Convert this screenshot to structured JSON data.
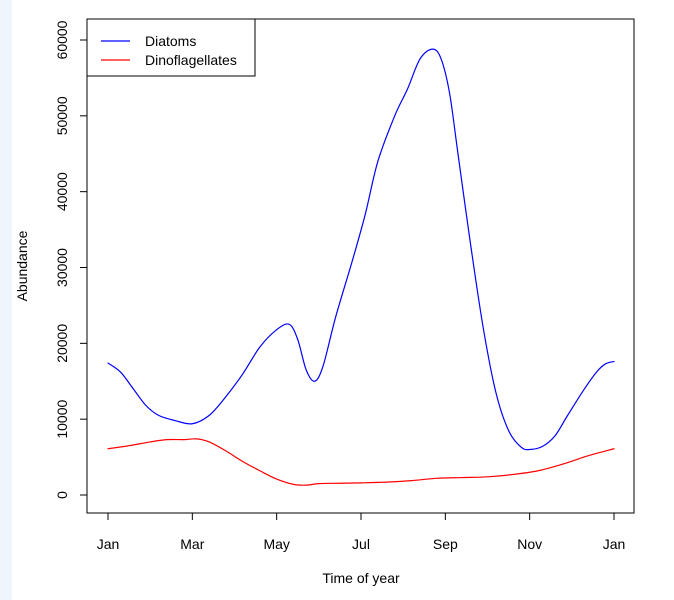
{
  "chart_data": {
    "type": "line",
    "title": "",
    "xlabel": "Time of year",
    "ylabel": "Abundance",
    "xlim": [
      0,
      12
    ],
    "ylim": [
      0,
      60000
    ],
    "x_ticks": [
      {
        "x": 0,
        "label": "Jan"
      },
      {
        "x": 2,
        "label": "Mar"
      },
      {
        "x": 4,
        "label": "May"
      },
      {
        "x": 6,
        "label": "Jul"
      },
      {
        "x": 8,
        "label": "Sep"
      },
      {
        "x": 10,
        "label": "Nov"
      },
      {
        "x": 12,
        "label": "Jan"
      }
    ],
    "y_ticks": [
      {
        "y": 0,
        "label": "0"
      },
      {
        "y": 10000,
        "label": "10000"
      },
      {
        "y": 20000,
        "label": "20000"
      },
      {
        "y": 30000,
        "label": "30000"
      },
      {
        "y": 40000,
        "label": "40000"
      },
      {
        "y": 50000,
        "label": "50000"
      },
      {
        "y": 60000,
        "label": "60000"
      }
    ],
    "legend": "top-left",
    "grid": false,
    "series": [
      {
        "name": "Diatoms",
        "color": "#0000ff",
        "points": [
          [
            0,
            17400
          ],
          [
            0.3,
            16200
          ],
          [
            0.6,
            14000
          ],
          [
            0.9,
            11800
          ],
          [
            1.2,
            10500
          ],
          [
            1.6,
            9800
          ],
          [
            2.0,
            9400
          ],
          [
            2.4,
            10500
          ],
          [
            2.8,
            13000
          ],
          [
            3.2,
            16000
          ],
          [
            3.6,
            19500
          ],
          [
            4.0,
            21800
          ],
          [
            4.3,
            22500
          ],
          [
            4.5,
            20500
          ],
          [
            4.7,
            16500
          ],
          [
            4.9,
            15000
          ],
          [
            5.1,
            17000
          ],
          [
            5.4,
            23500
          ],
          [
            5.8,
            31000
          ],
          [
            6.1,
            37000
          ],
          [
            6.4,
            44000
          ],
          [
            6.8,
            50000
          ],
          [
            7.1,
            53500
          ],
          [
            7.4,
            57500
          ],
          [
            7.7,
            58800
          ],
          [
            7.9,
            57500
          ],
          [
            8.1,
            53000
          ],
          [
            8.3,
            45000
          ],
          [
            8.6,
            33000
          ],
          [
            8.9,
            22000
          ],
          [
            9.2,
            13500
          ],
          [
            9.5,
            8500
          ],
          [
            9.8,
            6300
          ],
          [
            10.0,
            6000
          ],
          [
            10.3,
            6400
          ],
          [
            10.6,
            7800
          ],
          [
            10.9,
            10500
          ],
          [
            11.3,
            14000
          ],
          [
            11.6,
            16300
          ],
          [
            11.8,
            17300
          ],
          [
            12.0,
            17600
          ]
        ]
      },
      {
        "name": "Dinoflagellates",
        "color": "#ff0000",
        "points": [
          [
            0,
            6100
          ],
          [
            0.5,
            6500
          ],
          [
            1.0,
            7000
          ],
          [
            1.4,
            7300
          ],
          [
            1.8,
            7300
          ],
          [
            2.1,
            7400
          ],
          [
            2.4,
            7000
          ],
          [
            2.8,
            5800
          ],
          [
            3.2,
            4400
          ],
          [
            3.6,
            3200
          ],
          [
            4.0,
            2100
          ],
          [
            4.4,
            1400
          ],
          [
            4.7,
            1300
          ],
          [
            5.0,
            1500
          ],
          [
            5.5,
            1550
          ],
          [
            6.0,
            1600
          ],
          [
            6.6,
            1700
          ],
          [
            7.2,
            1900
          ],
          [
            7.8,
            2200
          ],
          [
            8.4,
            2300
          ],
          [
            9.0,
            2400
          ],
          [
            9.6,
            2700
          ],
          [
            10.2,
            3200
          ],
          [
            10.8,
            4100
          ],
          [
            11.4,
            5200
          ],
          [
            12.0,
            6100
          ]
        ]
      }
    ]
  }
}
